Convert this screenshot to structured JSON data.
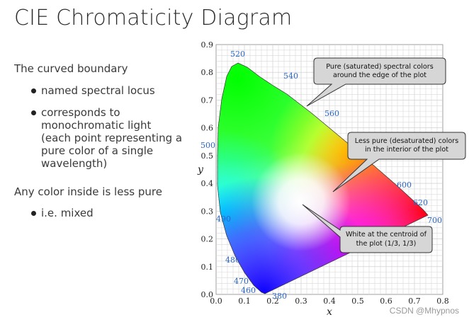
{
  "slide": {
    "title": "CIE Chromaticity Diagram",
    "text": {
      "p1": "The curved boundary",
      "b1": "named spectral locus",
      "b2_lines": [
        "corresponds to",
        "monochromatic light",
        "(each point representing a",
        "pure color of a single",
        "wavelength)"
      ],
      "p2": "Any color inside is less pure",
      "b3": "i.e. mixed"
    }
  },
  "diagram": {
    "axes": {
      "xlabel": "x",
      "ylabel": "y",
      "xticks": [
        "0.0",
        "0.1",
        "0.2",
        "0.3",
        "0.4",
        "0.5",
        "0.6",
        "0.7",
        "0.8"
      ],
      "yticks": [
        "0.0",
        "0.1",
        "0.2",
        "0.3",
        "0.4",
        "0.5",
        "0.6",
        "0.7",
        "0.8",
        "0.9"
      ]
    },
    "wavelength_labels": [
      "520",
      "540",
      "560",
      "500",
      "600",
      "620",
      "490",
      "700",
      "480",
      "470",
      "460",
      "380"
    ],
    "callouts": {
      "saturated": [
        "Pure (saturated) spectral colors",
        "around the edge of the plot"
      ],
      "desaturated": [
        "Less pure (desaturated) colors",
        "in the interior of the plot"
      ],
      "white": [
        "White at the centroid of",
        "the plot (1/3, 1/3)"
      ]
    }
  },
  "watermark": "CSDN @Mhypnos"
}
